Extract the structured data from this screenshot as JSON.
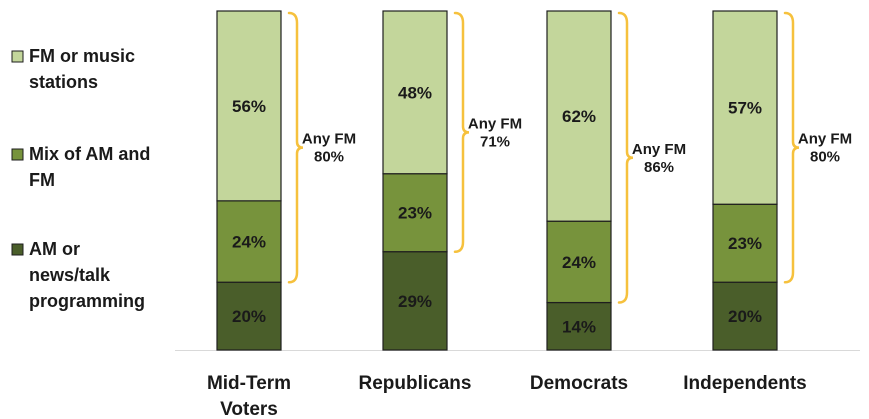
{
  "chart_data": {
    "type": "bar",
    "stacked": true,
    "categories": [
      "Mid-Term Voters",
      "Republicans",
      "Democrats",
      "Independents"
    ],
    "series": [
      {
        "name": "AM or news/talk programming",
        "values": [
          20,
          29,
          14,
          20
        ],
        "color": "#4a5e2a"
      },
      {
        "name": "Mix of AM and FM",
        "values": [
          24,
          23,
          24,
          23
        ],
        "color": "#77933c"
      },
      {
        "name": "FM or music stations",
        "values": [
          56,
          48,
          62,
          57
        ],
        "color": "#c3d69b"
      }
    ],
    "value_labels": [
      [
        "20%",
        "29%",
        "14%",
        "20%"
      ],
      [
        "24%",
        "23%",
        "24%",
        "23%"
      ],
      [
        "56%",
        "48%",
        "62%",
        "57%"
      ]
    ],
    "annotations": [
      {
        "label": "Any FM",
        "value": "80%"
      },
      {
        "label": "Any FM",
        "value": "71%"
      },
      {
        "label": "Any FM",
        "value": "86%"
      },
      {
        "label": "Any FM",
        "value": "80%"
      }
    ],
    "legend": {
      "placement": "left",
      "items": [
        {
          "label_lines": [
            "FM or music",
            "stations"
          ],
          "color": "#c3d69b"
        },
        {
          "label_lines": [
            "Mix of AM and",
            "FM"
          ],
          "color": "#77933c"
        },
        {
          "label_lines": [
            "AM or",
            "news/talk",
            "programming"
          ],
          "color": "#4a5e2a"
        }
      ]
    },
    "category_label_lines": [
      [
        "Mid-Term",
        "Voters"
      ],
      [
        "Republicans"
      ],
      [
        "Democrats"
      ],
      [
        "Independents"
      ]
    ],
    "brace_color": "#f6c13d",
    "ylim": [
      0,
      100
    ],
    "grid": false
  }
}
